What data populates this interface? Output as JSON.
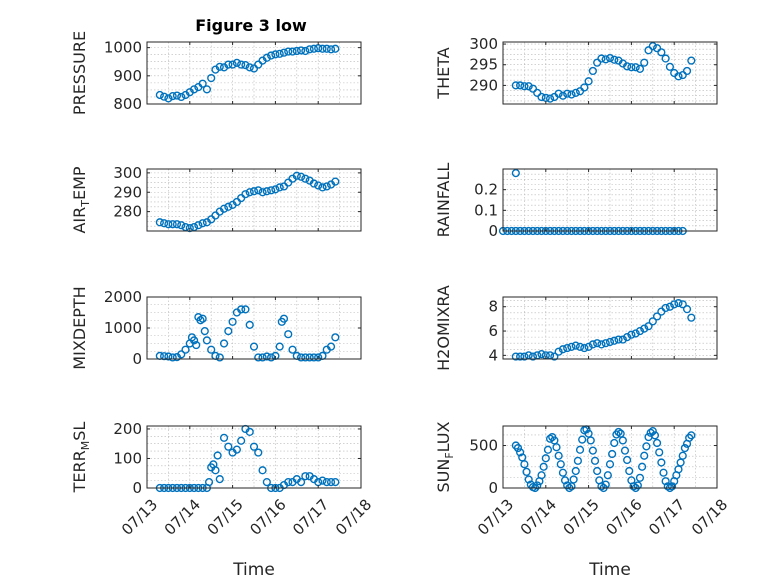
{
  "title": "Figure 3 low",
  "colors": {
    "series": "#0072BD",
    "axes": "#262626",
    "grid": "#b8b8b8"
  },
  "chart_data": [
    {
      "type": "scatter",
      "ylabel": "PRESSURE",
      "ylabel_sub": "",
      "ylabel_post": "",
      "xlabel": "",
      "xticklabels": [],
      "ylim": [
        800,
        1020
      ],
      "yticks": [
        800,
        900,
        1000
      ],
      "yticklabels": [
        "800",
        "900",
        "1000"
      ],
      "grid": true,
      "x": [
        0.3,
        0.4,
        0.5,
        0.6,
        0.7,
        0.8,
        0.9,
        1.0,
        1.1,
        1.2,
        1.3,
        1.4,
        1.5,
        1.6,
        1.7,
        1.8,
        1.9,
        2.0,
        2.1,
        2.2,
        2.3,
        2.4,
        2.5,
        2.6,
        2.7,
        2.8,
        2.9,
        3.0,
        3.1,
        3.2,
        3.3,
        3.4,
        3.5,
        3.6,
        3.7,
        3.8,
        3.9,
        4.0,
        4.1,
        4.2,
        4.3,
        4.4
      ],
      "y": [
        832,
        826,
        820,
        828,
        830,
        825,
        832,
        842,
        852,
        860,
        872,
        852,
        892,
        922,
        932,
        930,
        940,
        940,
        946,
        940,
        938,
        930,
        926,
        940,
        954,
        964,
        972,
        976,
        978,
        982,
        986,
        986,
        988,
        990,
        988,
        994,
        996,
        998,
        996,
        996,
        994,
        996
      ]
    },
    {
      "type": "scatter",
      "ylabel": "THETA",
      "ylabel_sub": "",
      "ylabel_post": "",
      "xlabel": "",
      "xticklabels": [],
      "ylim": [
        285.5,
        300.5
      ],
      "yticks": [
        290,
        295,
        300
      ],
      "yticklabels": [
        "290",
        "295",
        "300"
      ],
      "grid": true,
      "x": [
        0.3,
        0.4,
        0.5,
        0.6,
        0.7,
        0.8,
        0.9,
        1.0,
        1.1,
        1.2,
        1.3,
        1.4,
        1.5,
        1.6,
        1.7,
        1.8,
        1.9,
        2.0,
        2.1,
        2.2,
        2.3,
        2.4,
        2.5,
        2.6,
        2.7,
        2.8,
        2.9,
        3.0,
        3.1,
        3.2,
        3.3,
        3.4,
        3.5,
        3.6,
        3.7,
        3.8,
        3.9,
        4.0,
        4.1,
        4.2,
        4.3,
        4.4
      ],
      "y": [
        290,
        290,
        289.8,
        289.8,
        289.2,
        288.2,
        287.2,
        287,
        286.8,
        287.2,
        288,
        287.5,
        288,
        287.8,
        288.2,
        288.6,
        289.5,
        291,
        293.5,
        295.5,
        296.5,
        296.3,
        296.6,
        296.2,
        296,
        295.3,
        294.6,
        294.4,
        294.4,
        294,
        295.5,
        298.5,
        299.5,
        299,
        298,
        296.5,
        294.5,
        293,
        292.2,
        292.5,
        293.5,
        296
      ]
    },
    {
      "type": "scatter",
      "ylabel": "AIR",
      "ylabel_sub": "T",
      "ylabel_post": "EMP",
      "xlabel": "",
      "xticklabels": [],
      "ylim": [
        270,
        302
      ],
      "yticks": [
        280,
        290,
        300
      ],
      "yticklabels": [
        "280",
        "290",
        "300"
      ],
      "grid": true,
      "x": [
        0.3,
        0.4,
        0.5,
        0.6,
        0.7,
        0.8,
        0.9,
        1.0,
        1.1,
        1.2,
        1.3,
        1.4,
        1.5,
        1.6,
        1.7,
        1.8,
        1.9,
        2.0,
        2.1,
        2.2,
        2.3,
        2.4,
        2.5,
        2.6,
        2.7,
        2.8,
        2.9,
        3.0,
        3.1,
        3.2,
        3.3,
        3.4,
        3.5,
        3.6,
        3.7,
        3.8,
        3.9,
        4.0,
        4.1,
        4.2,
        4.3,
        4.4
      ],
      "y": [
        274.5,
        274,
        273.5,
        273.5,
        273.5,
        273,
        272,
        271.5,
        272,
        273,
        274,
        274.5,
        276,
        278,
        280,
        281.5,
        282.5,
        283.5,
        285,
        287,
        289,
        290,
        290.5,
        291,
        290,
        290.5,
        291,
        291.5,
        292.5,
        293,
        295,
        297,
        298.5,
        298,
        297,
        296,
        294.5,
        293.5,
        292.5,
        293,
        294,
        295.5
      ]
    },
    {
      "type": "scatter",
      "ylabel": "RAINFALL",
      "ylabel_sub": "",
      "ylabel_post": "",
      "xlabel": "",
      "xticklabels": [],
      "ylim": [
        0,
        0.3
      ],
      "yticks": [
        0,
        0.1,
        0.2
      ],
      "yticklabels": [
        "0",
        "0.1",
        "0.2"
      ],
      "grid": true,
      "x": [
        0.0,
        0.1,
        0.2,
        0.3,
        0.4,
        0.5,
        0.6,
        0.7,
        0.8,
        0.9,
        1.0,
        1.1,
        1.2,
        1.3,
        1.4,
        1.5,
        1.6,
        1.7,
        1.8,
        1.9,
        2.0,
        2.1,
        2.2,
        2.3,
        2.4,
        2.5,
        2.6,
        2.7,
        2.8,
        2.9,
        3.0,
        3.1,
        3.2,
        3.3,
        3.4,
        3.5,
        3.6,
        3.7,
        3.8,
        3.9,
        4.0,
        4.1,
        4.2,
        0.3
      ],
      "y": [
        0,
        0,
        0,
        0,
        0,
        0,
        0,
        0,
        0,
        0,
        0,
        0,
        0,
        0,
        0,
        0,
        0,
        0,
        0,
        0,
        0,
        0,
        0,
        0,
        0,
        0,
        0,
        0,
        0,
        0,
        0,
        0,
        0,
        0,
        0,
        0,
        0,
        0,
        0,
        0,
        0,
        0,
        0,
        0.28
      ]
    },
    {
      "type": "scatter",
      "ylabel": "MIXDEPTH",
      "ylabel_sub": "",
      "ylabel_post": "",
      "xlabel": "",
      "xticklabels": [],
      "ylim": [
        0,
        2000
      ],
      "yticks": [
        0,
        1000,
        2000
      ],
      "yticklabels": [
        "0",
        "1000",
        "2000"
      ],
      "grid": true,
      "x": [
        0.3,
        0.4,
        0.5,
        0.6,
        0.7,
        0.8,
        0.9,
        1.0,
        1.05,
        1.1,
        1.15,
        1.2,
        1.25,
        1.3,
        1.35,
        1.4,
        1.5,
        1.6,
        1.7,
        1.8,
        1.9,
        2.0,
        2.1,
        2.2,
        2.3,
        2.4,
        2.5,
        2.6,
        2.7,
        2.8,
        2.9,
        3.0,
        3.1,
        3.15,
        3.2,
        3.3,
        3.4,
        3.5,
        3.6,
        3.7,
        3.8,
        3.9,
        4.0,
        4.1,
        4.2,
        4.3,
        4.4
      ],
      "y": [
        100,
        90,
        80,
        50,
        60,
        150,
        300,
        500,
        700,
        600,
        450,
        1350,
        1250,
        1300,
        900,
        600,
        300,
        100,
        50,
        500,
        900,
        1200,
        1500,
        1600,
        1600,
        1100,
        400,
        50,
        50,
        80,
        50,
        100,
        400,
        1200,
        1300,
        800,
        300,
        100,
        50,
        50,
        50,
        50,
        50,
        100,
        300,
        400,
        700
      ]
    },
    {
      "type": "scatter",
      "ylabel": "H2OMIXRA",
      "ylabel_sub": "",
      "ylabel_post": "",
      "xlabel": "",
      "xticklabels": [],
      "ylim": [
        3.7,
        8.8
      ],
      "yticks": [
        4,
        6,
        8
      ],
      "yticklabels": [
        "4",
        "6",
        "8"
      ],
      "grid": true,
      "x": [
        0.3,
        0.4,
        0.5,
        0.6,
        0.7,
        0.8,
        0.9,
        1.0,
        1.1,
        1.2,
        1.3,
        1.4,
        1.5,
        1.6,
        1.7,
        1.8,
        1.9,
        2.0,
        2.1,
        2.2,
        2.3,
        2.4,
        2.5,
        2.6,
        2.7,
        2.8,
        2.9,
        3.0,
        3.1,
        3.2,
        3.3,
        3.4,
        3.5,
        3.6,
        3.7,
        3.8,
        3.9,
        4.0,
        4.1,
        4.2,
        4.3,
        4.4
      ],
      "y": [
        3.9,
        3.9,
        3.9,
        4.0,
        3.9,
        4.0,
        4.1,
        4.0,
        4.0,
        3.9,
        4.3,
        4.5,
        4.6,
        4.7,
        4.8,
        4.7,
        4.6,
        4.7,
        4.9,
        5.0,
        4.9,
        5.0,
        5.1,
        5.2,
        5.3,
        5.3,
        5.5,
        5.7,
        5.8,
        6.0,
        6.2,
        6.4,
        6.8,
        7.2,
        7.6,
        7.9,
        8.0,
        8.2,
        8.3,
        8.2,
        7.8,
        7.1
      ]
    },
    {
      "type": "scatter",
      "ylabel": "TERR",
      "ylabel_sub": "M",
      "ylabel_post": "SL",
      "xlabel": "Time",
      "xticklabels": [
        "07/13",
        "07/14",
        "07/15",
        "07/16",
        "07/17",
        "07/18"
      ],
      "ylim": [
        0,
        210
      ],
      "yticks": [
        0,
        100,
        200
      ],
      "yticklabels": [
        "0",
        "100",
        "200"
      ],
      "grid": true,
      "x": [
        0.3,
        0.4,
        0.5,
        0.6,
        0.7,
        0.8,
        0.9,
        1.0,
        1.1,
        1.2,
        1.3,
        1.4,
        1.45,
        1.5,
        1.55,
        1.6,
        1.65,
        1.7,
        1.8,
        1.9,
        2.0,
        2.1,
        2.2,
        2.3,
        2.4,
        2.5,
        2.6,
        2.7,
        2.8,
        2.9,
        3.0,
        3.1,
        3.2,
        3.3,
        3.4,
        3.5,
        3.6,
        3.7,
        3.8,
        3.9,
        4.0,
        4.1,
        4.2,
        4.3,
        4.4
      ],
      "y": [
        0,
        0,
        0,
        0,
        0,
        0,
        0,
        0,
        0,
        0,
        0,
        0,
        20,
        70,
        80,
        60,
        110,
        30,
        170,
        140,
        120,
        130,
        160,
        200,
        190,
        140,
        120,
        60,
        20,
        0,
        0,
        0,
        10,
        20,
        20,
        30,
        20,
        40,
        40,
        30,
        20,
        25,
        20,
        20,
        20
      ]
    },
    {
      "type": "scatter",
      "ylabel": "SUN",
      "ylabel_sub": "F",
      "ylabel_post": "LUX",
      "xlabel": "Time",
      "xticklabels": [
        "07/13",
        "07/14",
        "07/15",
        "07/16",
        "07/17",
        "07/18"
      ],
      "ylim": [
        0,
        730
      ],
      "yticks": [
        0,
        500
      ],
      "yticklabels": [
        "0",
        "500"
      ],
      "grid": true,
      "x": [
        0.3,
        0.35,
        0.4,
        0.45,
        0.5,
        0.55,
        0.6,
        0.65,
        0.7,
        0.75,
        0.8,
        0.85,
        0.9,
        0.95,
        1.0,
        1.05,
        1.1,
        1.15,
        1.2,
        1.25,
        1.3,
        1.35,
        1.4,
        1.45,
        1.5,
        1.55,
        1.6,
        1.65,
        1.7,
        1.75,
        1.8,
        1.85,
        1.9,
        1.95,
        2.0,
        2.05,
        2.1,
        2.15,
        2.2,
        2.25,
        2.3,
        2.35,
        2.4,
        2.45,
        2.5,
        2.55,
        2.6,
        2.65,
        2.7,
        2.75,
        2.8,
        2.85,
        2.9,
        2.95,
        3.0,
        3.05,
        3.1,
        3.15,
        3.2,
        3.25,
        3.3,
        3.35,
        3.4,
        3.45,
        3.5,
        3.55,
        3.6,
        3.65,
        3.7,
        3.75,
        3.8,
        3.85,
        3.9,
        3.95,
        4.0,
        4.05,
        4.1,
        4.15,
        4.2,
        4.25,
        4.3,
        4.35,
        4.4
      ],
      "y": [
        500,
        470,
        420,
        360,
        280,
        190,
        100,
        40,
        10,
        0,
        30,
        80,
        150,
        250,
        350,
        450,
        580,
        600,
        560,
        480,
        380,
        280,
        180,
        90,
        30,
        0,
        20,
        100,
        200,
        320,
        450,
        570,
        680,
        690,
        640,
        560,
        440,
        320,
        200,
        90,
        20,
        0,
        40,
        150,
        280,
        400,
        530,
        630,
        660,
        640,
        560,
        440,
        330,
        200,
        90,
        20,
        0,
        30,
        120,
        250,
        380,
        490,
        600,
        650,
        670,
        620,
        530,
        420,
        300,
        180,
        80,
        20,
        0,
        20,
        80,
        150,
        220,
        300,
        380,
        470,
        520,
        590,
        620
      ]
    }
  ]
}
